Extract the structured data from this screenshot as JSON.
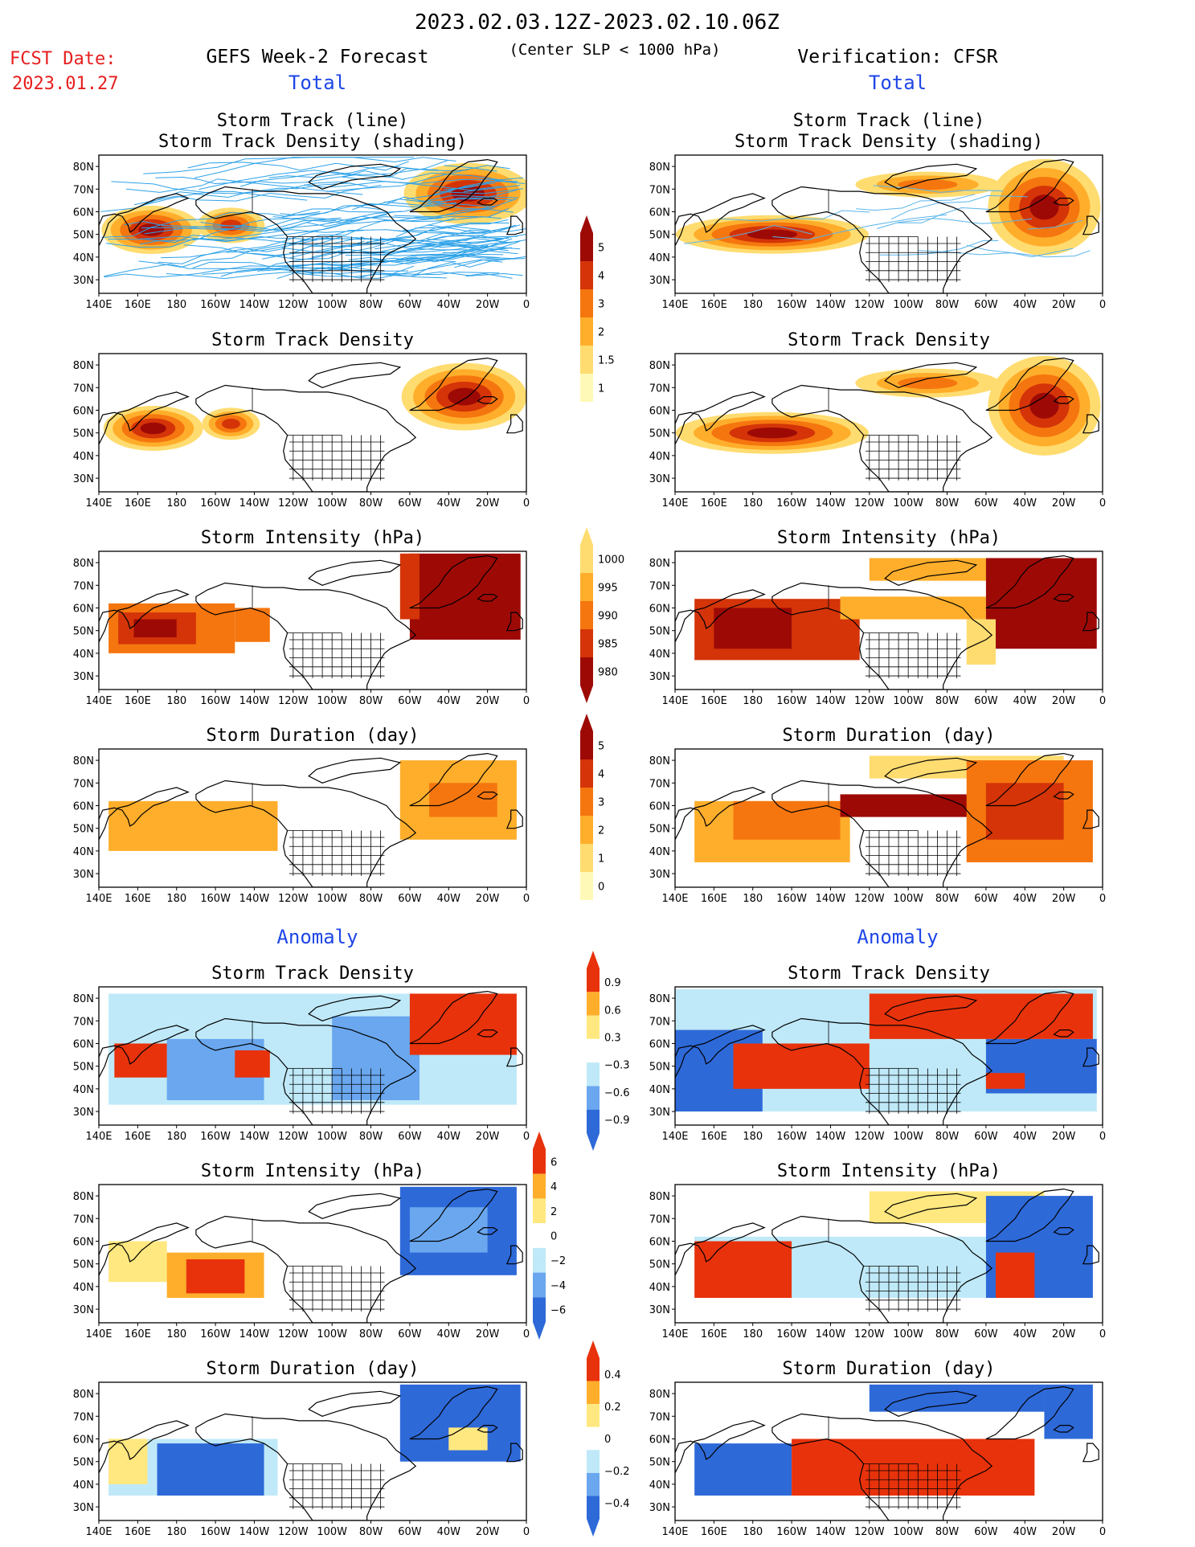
{
  "header": {
    "period": "2023.02.03.12Z-2023.02.10.06Z",
    "criterion": "(Center SLP < 1000 hPa)",
    "fcst_label": "FCST Date:",
    "fcst_date": "2023.01.27",
    "left_title": "GEFS Week-2 Forecast",
    "right_title": "Verification: CFSR",
    "total_label": "Total",
    "anomaly_label": "Anomaly"
  },
  "panel_titles": {
    "track_line": "Storm Track (line)",
    "track_shading": "Storm Track Density (shading)",
    "density": "Storm Track Density",
    "intensity": "Storm Intensity (hPa)",
    "duration": "Storm Duration (day)"
  },
  "map_axes": {
    "x_ticks": [
      "140E",
      "160E",
      "180",
      "160W",
      "140W",
      "120W",
      "100W",
      "80W",
      "60W",
      "40W",
      "20W",
      "0"
    ],
    "y_ticks": [
      "80N",
      "70N",
      "60N",
      "50N",
      "40N",
      "30N"
    ]
  },
  "colors": {
    "total_scale": [
      "#fff9b8",
      "#ffdc70",
      "#ffae2b",
      "#f5760f",
      "#d43408",
      "#9d0a06"
    ],
    "anomaly_scale": [
      "#2e69d8",
      "#6aa7ef",
      "#bfe9f8",
      "#ffffff",
      "#ffe880",
      "#ffae2b",
      "#e8320b"
    ],
    "track_line_forecast": "#2ea2e8",
    "track_line_observed": "#5ab4ea",
    "title_blue": "#1e46e6",
    "fcst_red": "#e61e1e"
  },
  "colorbars": {
    "density_total": [
      "5",
      "4",
      "3",
      "2",
      "1.5",
      "1"
    ],
    "intensity_total": [
      "1000",
      "995",
      "990",
      "985",
      "980"
    ],
    "duration_total": [
      "5",
      "4",
      "3",
      "2",
      "1",
      "0"
    ],
    "density_anom": [
      "0.9",
      "0.6",
      "0.3",
      "−0.3",
      "−0.6",
      "−0.9"
    ],
    "intensity_anom": [
      "6",
      "4",
      "2",
      "0",
      "−2",
      "−4",
      "−6"
    ],
    "duration_anom": [
      "0.4",
      "0.2",
      "0",
      "−0.2",
      "−0.4"
    ]
  },
  "chart_data": [
    {
      "type": "heatmap",
      "panel": "forecast-total-track",
      "title": "Storm Track (line) / Storm Track Density (shading)",
      "note": "storm track lines with density shading over North Pacific (45-60N, 150E-140W) and North Atlantic (55-75N, 60W-0)",
      "regions": [
        {
          "lon": [
            150,
            190
          ],
          "lat": [
            45,
            60
          ],
          "level": 5
        },
        {
          "lon": [
            200,
            225
          ],
          "lat": [
            47,
            60
          ],
          "level": 4
        },
        {
          "lon": [
            300,
            350
          ],
          "lat": [
            55,
            75
          ],
          "level": 5
        }
      ]
    },
    {
      "type": "heatmap",
      "panel": "observed-total-track",
      "title": "Storm Track (line) / Storm Track Density (shading)",
      "regions": [
        {
          "lon": [
            150,
            240
          ],
          "lat": [
            42,
            62
          ],
          "level": 5
        },
        {
          "lon": [
            240,
            300
          ],
          "lat": [
            58,
            68
          ],
          "level": 2
        },
        {
          "lon": [
            300,
            355
          ],
          "lat": [
            40,
            78
          ],
          "level": 5
        }
      ]
    },
    {
      "type": "heatmap",
      "panel": "forecast-total-density",
      "title": "Storm Track Density",
      "colorbar": [
        1,
        1.5,
        2,
        3,
        4,
        5
      ],
      "regions": [
        {
          "lon": [
            145,
            195
          ],
          "lat": [
            42,
            62
          ],
          "level": 5
        },
        {
          "lon": [
            205,
            230
          ],
          "lat": [
            45,
            60
          ],
          "level": 4
        },
        {
          "lon": [
            295,
            355
          ],
          "lat": [
            50,
            78
          ],
          "level": 5
        }
      ]
    },
    {
      "type": "heatmap",
      "panel": "observed-total-density",
      "title": "Storm Track Density",
      "colorbar": [
        1,
        1.5,
        2,
        3,
        4,
        5
      ],
      "regions": [
        {
          "lon": [
            150,
            240
          ],
          "lat": [
            40,
            62
          ],
          "level": 5
        },
        {
          "lon": [
            240,
            300
          ],
          "lat": [
            55,
            80
          ],
          "level": 2
        },
        {
          "lon": [
            300,
            355
          ],
          "lat": [
            38,
            80
          ],
          "level": 5
        }
      ]
    },
    {
      "type": "heatmap",
      "panel": "forecast-total-intensity",
      "title": "Storm Intensity (hPa)",
      "colorbar": [
        980,
        985,
        990,
        995,
        1000
      ],
      "regions": [
        {
          "lon": [
            145,
            225
          ],
          "lat": [
            40,
            62
          ],
          "value": 985
        },
        {
          "lon": [
            300,
            357
          ],
          "lat": [
            45,
            83
          ],
          "value": 980
        }
      ]
    },
    {
      "type": "heatmap",
      "panel": "observed-total-intensity",
      "title": "Storm Intensity (hPa)",
      "colorbar": [
        980,
        985,
        990,
        995,
        1000
      ],
      "regions": [
        {
          "lon": [
            150,
            235
          ],
          "lat": [
            35,
            65
          ],
          "value": 985
        },
        {
          "lon": [
            240,
            300
          ],
          "lat": [
            55,
            82
          ],
          "value": 990
        },
        {
          "lon": [
            300,
            357
          ],
          "lat": [
            40,
            82
          ],
          "value": 980
        }
      ]
    },
    {
      "type": "heatmap",
      "panel": "forecast-total-duration",
      "title": "Storm Duration (day)",
      "colorbar": [
        0,
        1,
        2,
        3,
        4,
        5
      ],
      "regions": [
        {
          "lon": [
            145,
            232
          ],
          "lat": [
            40,
            62
          ],
          "value": 3
        },
        {
          "lon": [
            295,
            355
          ],
          "lat": [
            45,
            80
          ],
          "value": 3.5
        }
      ]
    },
    {
      "type": "heatmap",
      "panel": "observed-total-duration",
      "title": "Storm Duration (day)",
      "colorbar": [
        0,
        1,
        2,
        3,
        4,
        5
      ],
      "regions": [
        {
          "lon": [
            150,
            230
          ],
          "lat": [
            35,
            62
          ],
          "value": 3
        },
        {
          "lon": [
            225,
            300
          ],
          "lat": [
            55,
            65
          ],
          "value": 5
        },
        {
          "lon": [
            290,
            355
          ],
          "lat": [
            35,
            82
          ],
          "value": 4
        }
      ]
    },
    {
      "type": "heatmap",
      "panel": "forecast-anomaly-density",
      "title": "Storm Track Density",
      "colorbar": [
        -0.9,
        -0.6,
        -0.3,
        0.3,
        0.6,
        0.9
      ],
      "regions": [
        {
          "lon": [
            148,
            175
          ],
          "lat": [
            45,
            60
          ],
          "value": 0.9
        },
        {
          "lon": [
            210,
            228
          ],
          "lat": [
            45,
            57
          ],
          "value": 0.9
        },
        {
          "lon": [
            300,
            355
          ],
          "lat": [
            55,
            82
          ],
          "value": 0.9
        },
        {
          "lon": [
            180,
            220
          ],
          "lat": [
            35,
            60
          ],
          "value": -0.6
        },
        {
          "lon": [
            260,
            300
          ],
          "lat": [
            35,
            70
          ],
          "value": -0.6
        }
      ]
    },
    {
      "type": "heatmap",
      "panel": "observed-anomaly-density",
      "title": "Storm Track Density",
      "colorbar": [
        -0.9,
        -0.6,
        -0.3,
        0.3,
        0.6,
        0.9
      ],
      "regions": [
        {
          "lon": [
            240,
            355
          ],
          "lat": [
            62,
            82
          ],
          "value": 0.9
        },
        {
          "lon": [
            170,
            240
          ],
          "lat": [
            40,
            60
          ],
          "value": 0.9
        },
        {
          "lon": [
            140,
            180
          ],
          "lat": [
            30,
            65
          ],
          "value": -0.9
        },
        {
          "lon": [
            300,
            357
          ],
          "lat": [
            38,
            62
          ],
          "value": -0.9
        }
      ]
    },
    {
      "type": "heatmap",
      "panel": "forecast-anomaly-intensity",
      "title": "Storm Intensity (hPa)",
      "colorbar": [
        -6,
        -4,
        -2,
        0,
        2,
        4,
        6
      ],
      "regions": [
        {
          "lon": [
            175,
            225
          ],
          "lat": [
            35,
            55
          ],
          "value": 6
        },
        {
          "lon": [
            295,
            355
          ],
          "lat": [
            45,
            84
          ],
          "value": -4
        }
      ]
    },
    {
      "type": "heatmap",
      "panel": "observed-anomaly-intensity",
      "title": "Storm Intensity (hPa)",
      "colorbar": [
        -6,
        -4,
        -2,
        0,
        2,
        4,
        6
      ],
      "regions": [
        {
          "lon": [
            150,
            200
          ],
          "lat": [
            35,
            60
          ],
          "value": 6
        },
        {
          "lon": [
            300,
            355
          ],
          "lat": [
            35,
            75
          ],
          "value": -4
        },
        {
          "lon": [
            240,
            300
          ],
          "lat": [
            65,
            80
          ],
          "value": 2
        }
      ]
    },
    {
      "type": "heatmap",
      "panel": "forecast-anomaly-duration",
      "title": "Storm Duration (day)",
      "colorbar": [
        -0.4,
        -0.2,
        0,
        0.2,
        0.4
      ],
      "regions": [
        {
          "lon": [
            170,
            225
          ],
          "lat": [
            35,
            60
          ],
          "value": -0.4
        },
        {
          "lon": [
            300,
            357
          ],
          "lat": [
            50,
            84
          ],
          "value": -0.4
        },
        {
          "lon": [
            145,
            165
          ],
          "lat": [
            40,
            60
          ],
          "value": 0.2
        }
      ]
    },
    {
      "type": "heatmap",
      "panel": "observed-anomaly-duration",
      "title": "Storm Duration (day)",
      "colorbar": [
        -0.4,
        -0.2,
        0,
        0.2,
        0.4
      ],
      "regions": [
        {
          "lon": [
            150,
            200
          ],
          "lat": [
            35,
            58
          ],
          "value": -0.4
        },
        {
          "lon": [
            200,
            325
          ],
          "lat": [
            35,
            60
          ],
          "value": 0.4
        },
        {
          "lon": [
            240,
            330
          ],
          "lat": [
            72,
            84
          ],
          "value": -0.4
        }
      ]
    }
  ]
}
